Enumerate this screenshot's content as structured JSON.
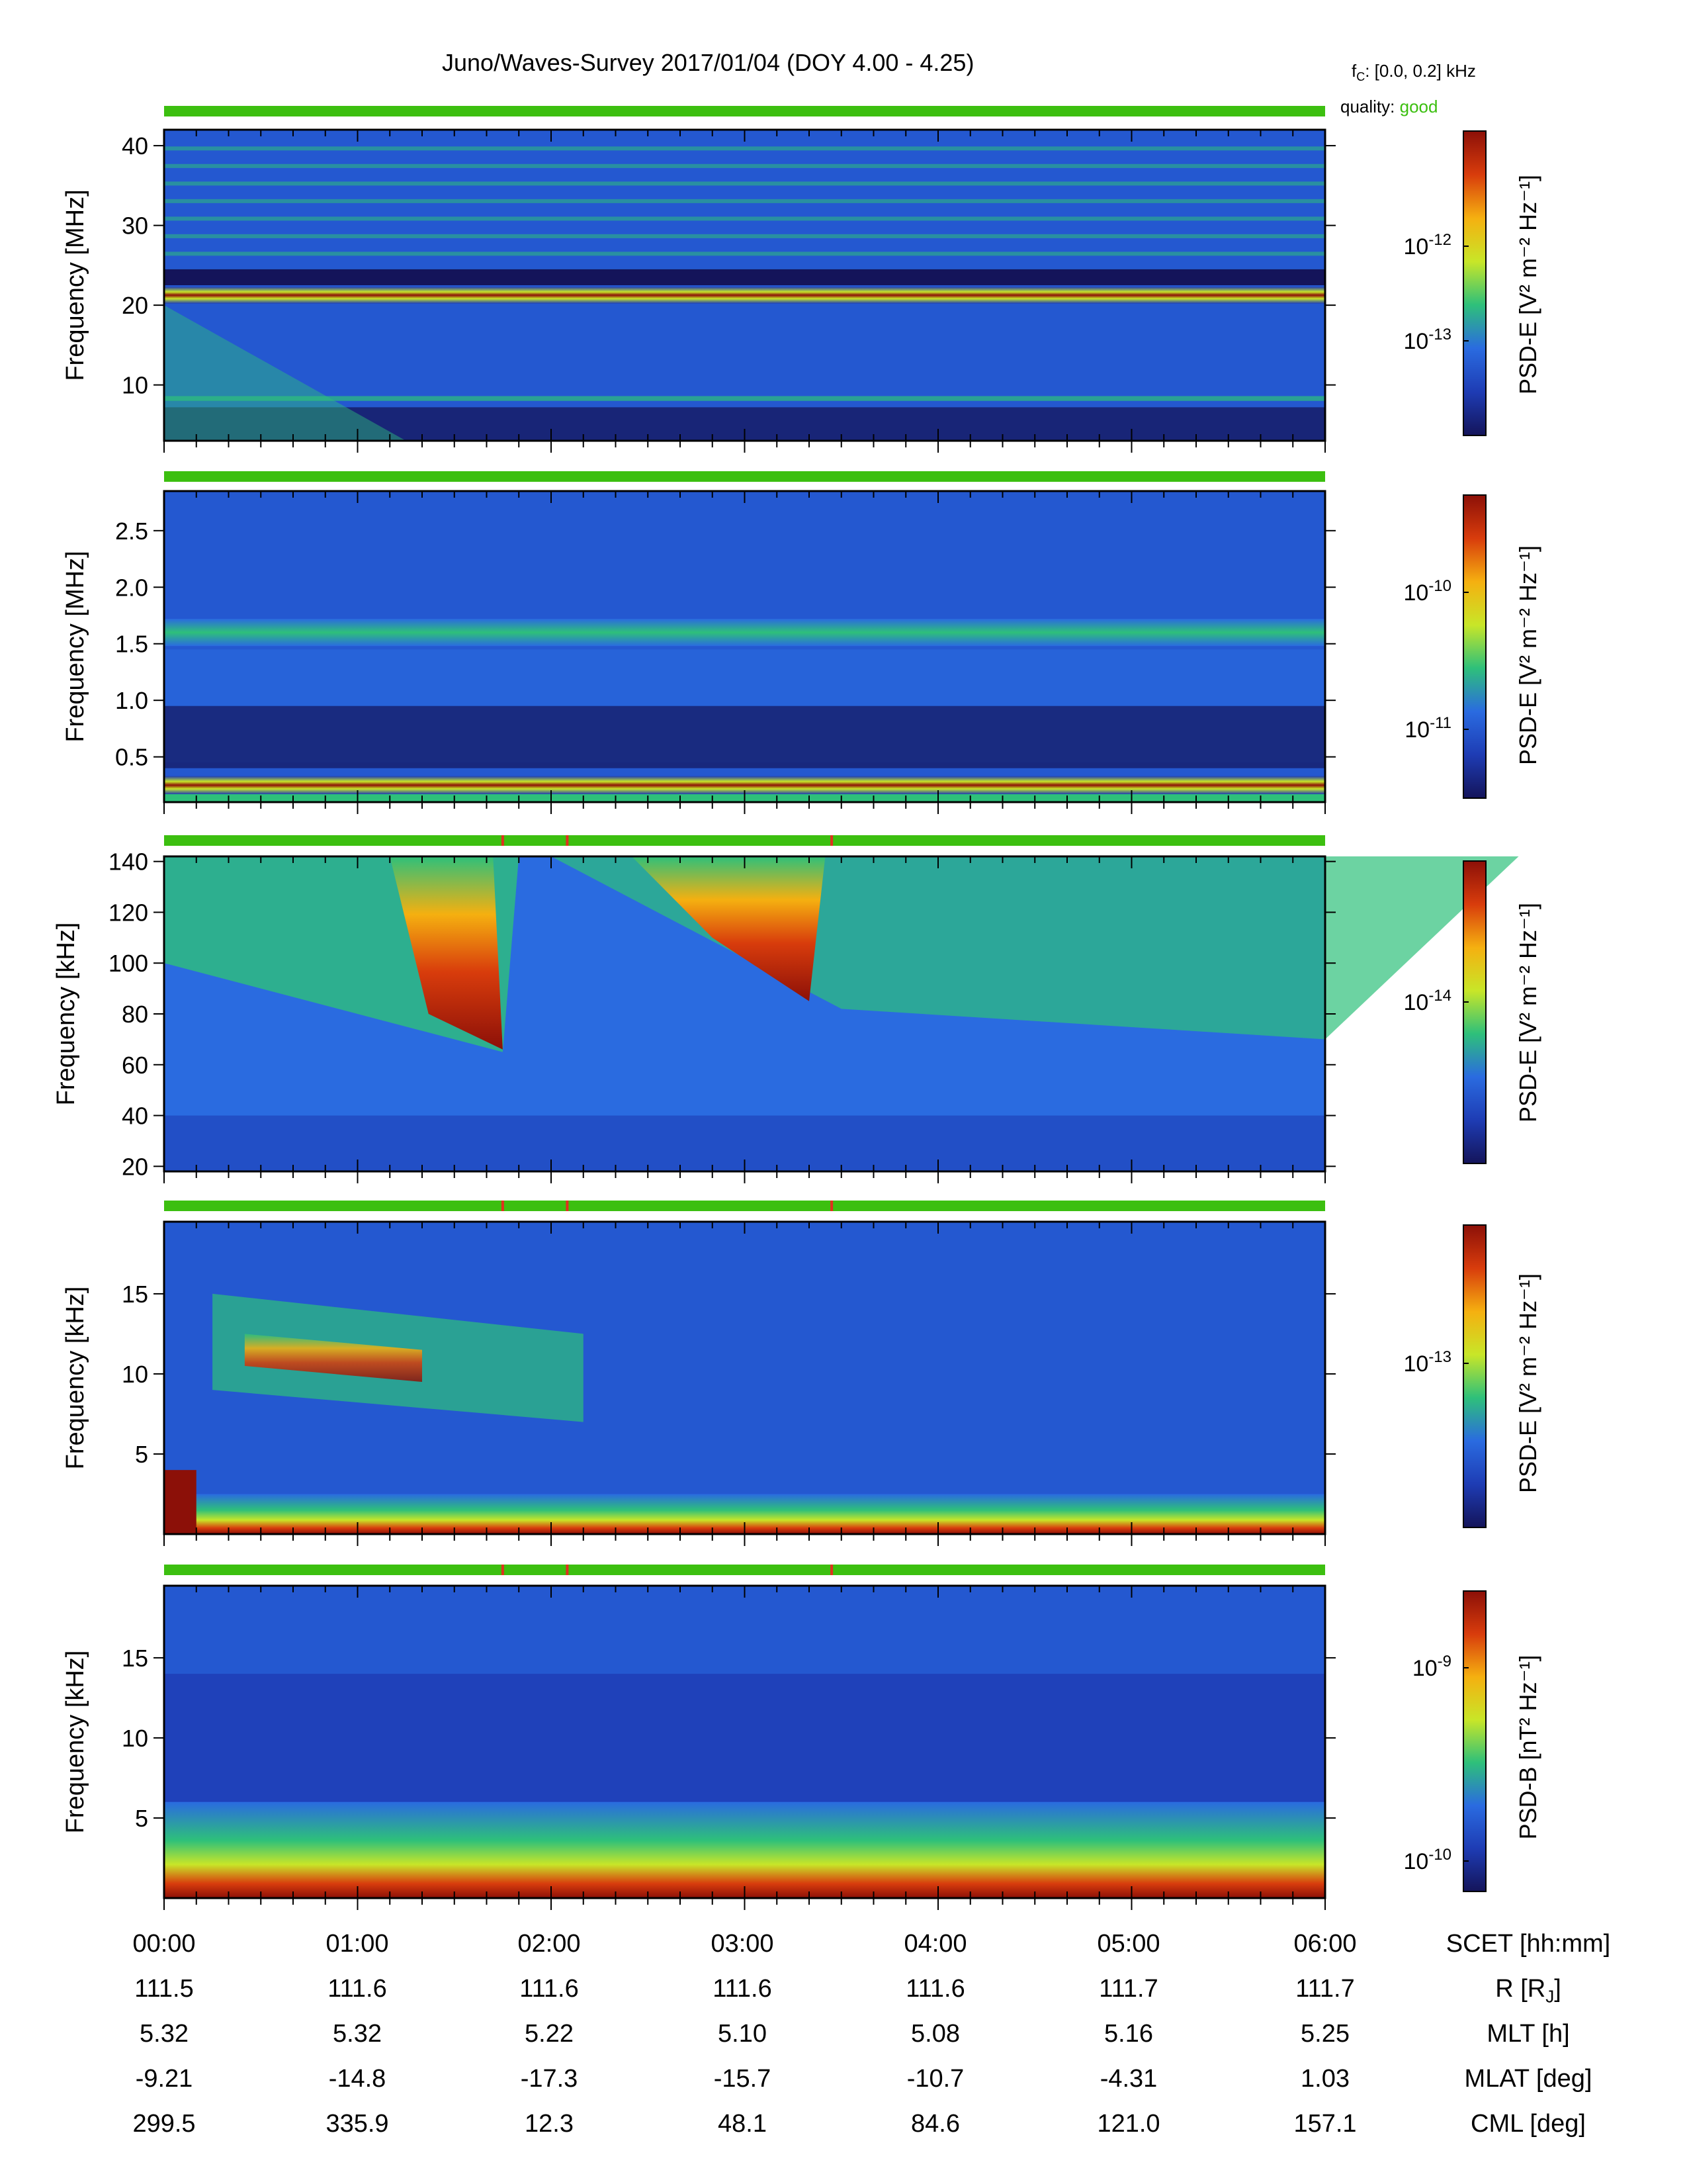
{
  "header": {
    "title": "Juno/Waves-Survey  2017/01/04 (DOY 4.00 - 4.25)",
    "fc_label": "f",
    "fc_sub": "C",
    "fc_value": ": [0.0, 0.2] kHz",
    "quality_label": "quality:",
    "quality_value": "good"
  },
  "colors": {
    "quality_good": "#3cbf10",
    "quality_bad": "#e0301e",
    "colormap": [
      "#14145a",
      "#1e3cb4",
      "#2a6be0",
      "#2ec07a",
      "#c8e628",
      "#f5b010",
      "#d83c0c",
      "#8c1008"
    ]
  },
  "chart_data": [
    {
      "type": "heatmap",
      "ylabel": "Frequency [MHz]",
      "yticks": [
        "10",
        "20",
        "30",
        "40"
      ],
      "ylim": [
        3,
        42
      ],
      "colorbar_label": "PSD-E [V² m⁻² Hz⁻¹]",
      "colorbar_ticks": [
        {
          "base": "10",
          "exp": "-12"
        },
        {
          "base": "10",
          "exp": "-13"
        }
      ],
      "features": [
        "strong narrowband line near 21 MHz",
        "descending emission 0 to 20 MHz during 00:00-01:15"
      ]
    },
    {
      "type": "heatmap",
      "ylabel": "Frequency [MHz]",
      "yticks": [
        "0.5",
        "1.0",
        "1.5",
        "2.0",
        "2.5"
      ],
      "ylim": [
        0.1,
        2.85
      ],
      "colorbar_label": "PSD-E [V² m⁻² Hz⁻¹]",
      "colorbar_ticks": [
        {
          "base": "10",
          "exp": "-10"
        },
        {
          "base": "10",
          "exp": "-11"
        }
      ],
      "features": [
        "line near 1.6 MHz",
        "strong line near 0.25 MHz"
      ]
    },
    {
      "type": "heatmap",
      "ylabel": "Frequency [kHz]",
      "yticks": [
        "20",
        "40",
        "60",
        "80",
        "100",
        "120",
        "140"
      ],
      "ylim": [
        18,
        142
      ],
      "colorbar_label": "PSD-E [V² m⁻² Hz⁻¹]",
      "colorbar_ticks": [
        {
          "base": "10",
          "exp": "-14"
        }
      ],
      "features": [
        "intense emission 01:10-01:45 above 65 kHz",
        "intense emission 02:25-03:25 above 85 kHz"
      ]
    },
    {
      "type": "heatmap",
      "ylabel": "Frequency [kHz]",
      "yticks": [
        "5",
        "10",
        "15"
      ],
      "ylim": [
        0,
        19.5
      ],
      "colorbar_label": "PSD-E [V² m⁻² Hz⁻¹]",
      "colorbar_ticks": [
        {
          "base": "10",
          "exp": "-13"
        }
      ],
      "features": [
        "bursty emission 7-13 kHz during 00:15-02:10",
        "strong band below 1 kHz"
      ]
    },
    {
      "type": "heatmap",
      "ylabel": "Frequency [kHz]",
      "yticks": [
        "5",
        "10",
        "15"
      ],
      "ylim": [
        0,
        19.5
      ],
      "colorbar_label": "PSD-B [nT² Hz⁻¹]",
      "colorbar_ticks": [
        {
          "base": "10",
          "exp": "-9"
        },
        {
          "base": "10",
          "exp": "-10"
        }
      ],
      "features": [
        "strong magnetic noise below 2 kHz"
      ]
    }
  ],
  "quality_flags_bad_times": [
    "01:45",
    "02:05",
    "03:27"
  ],
  "time_axis": {
    "xlim": [
      "00:00",
      "06:00"
    ],
    "rows": [
      {
        "label": "SCET [hh:mm]",
        "values": [
          "00:00",
          "01:00",
          "02:00",
          "03:00",
          "04:00",
          "05:00",
          "06:00"
        ]
      },
      {
        "label": "R [R",
        "label_sub": "J",
        "label_end": "]",
        "values": [
          "111.5",
          "111.6",
          "111.6",
          "111.6",
          "111.6",
          "111.7",
          "111.7"
        ]
      },
      {
        "label": "MLT [h]",
        "values": [
          "5.32",
          "5.32",
          "5.22",
          "5.10",
          "5.08",
          "5.16",
          "5.25"
        ]
      },
      {
        "label": "MLAT [deg]",
        "values": [
          "-9.21",
          "-14.8",
          "-17.3",
          "-15.7",
          "-10.7",
          "-4.31",
          "1.03"
        ]
      },
      {
        "label": "CML [deg]",
        "values": [
          "299.5",
          "335.9",
          "12.3",
          "48.1",
          "84.6",
          "121.0",
          "157.1"
        ]
      }
    ]
  }
}
